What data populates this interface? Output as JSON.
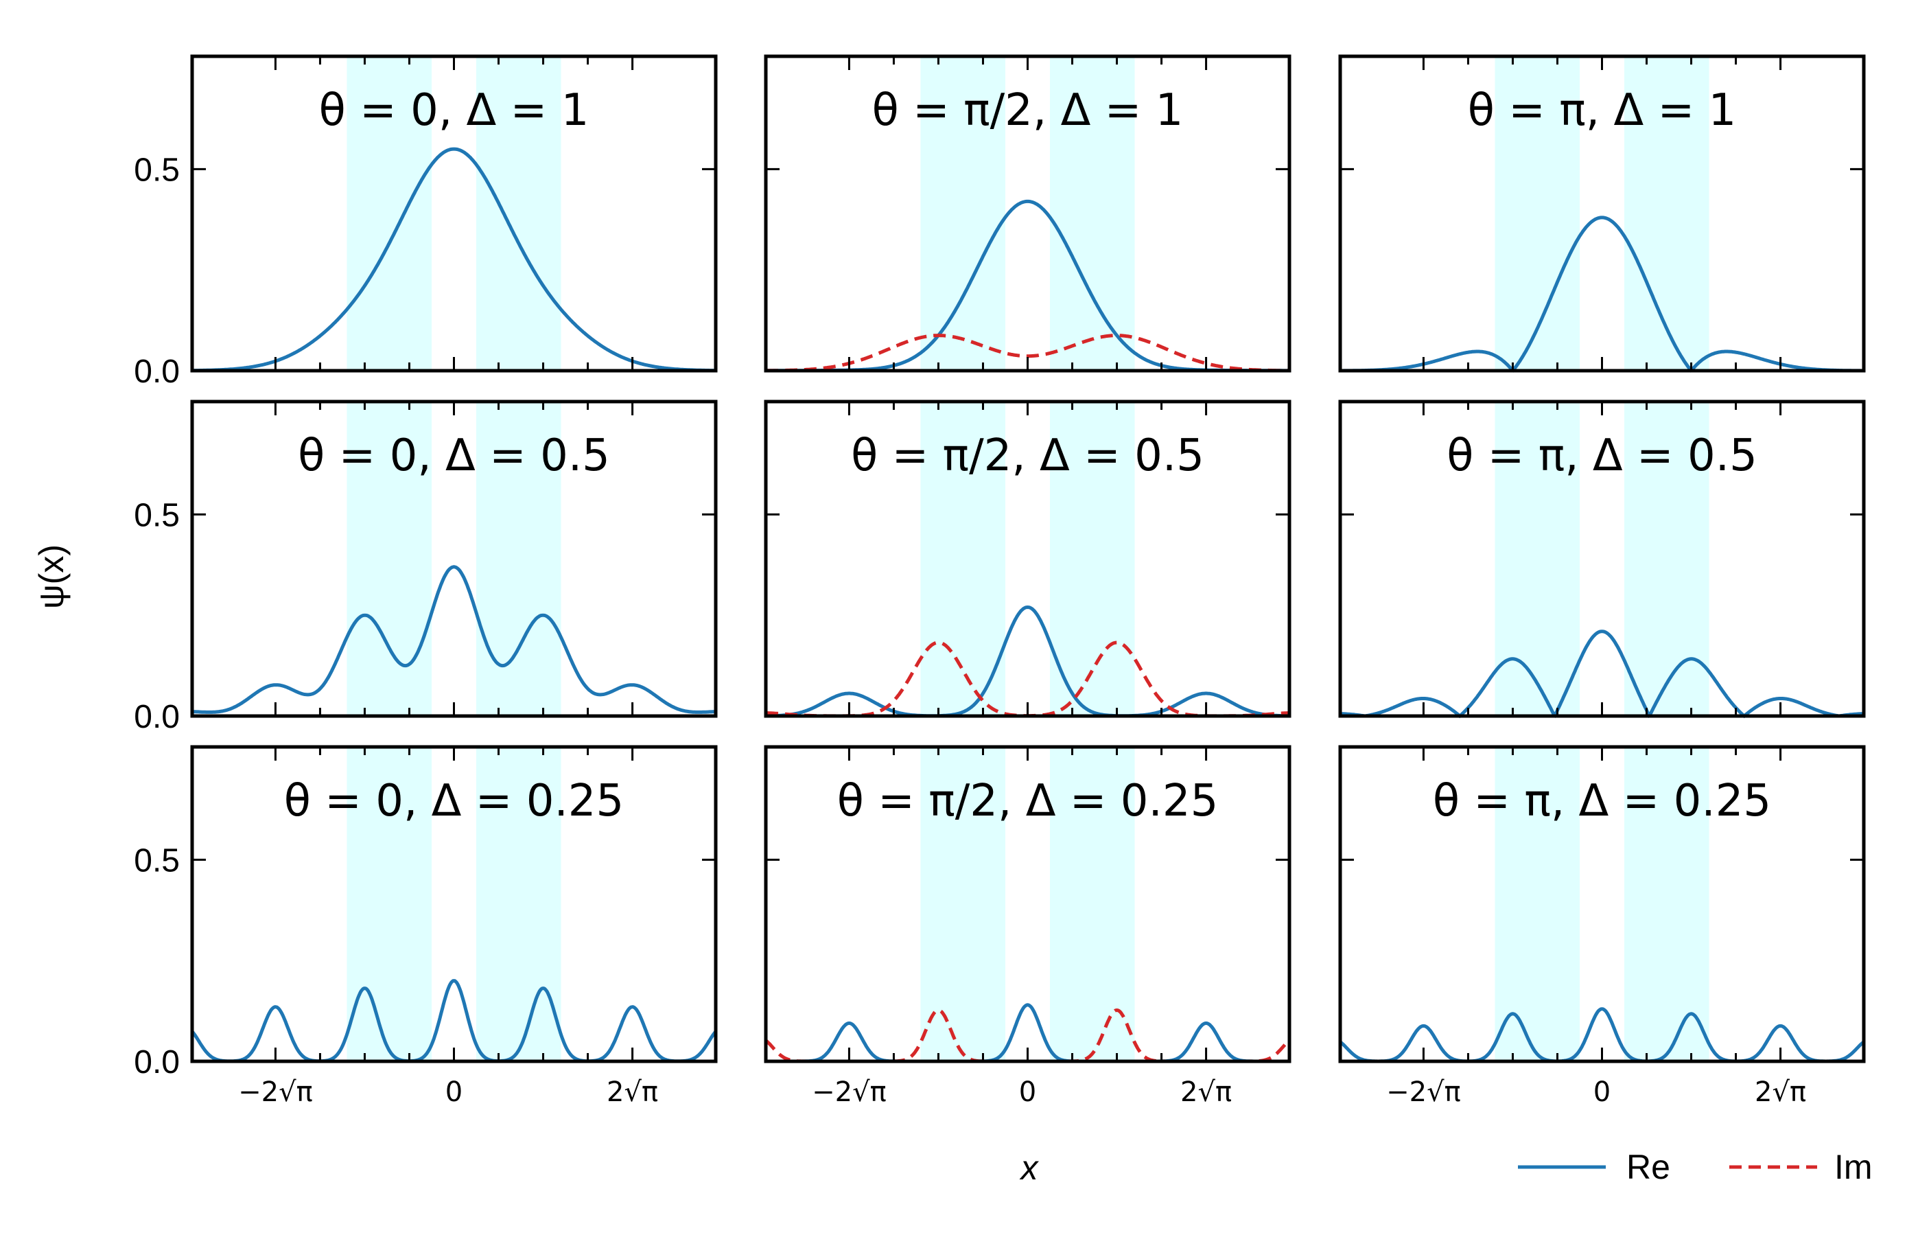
{
  "figure": {
    "xlabel": "x",
    "ylabel": "ψ(x)",
    "legend": {
      "placement": "bottom-right",
      "entries": [
        {
          "label": "Re",
          "color": "#1f77b4",
          "style": "solid"
        },
        {
          "label": "Im",
          "color": "#d62728",
          "style": "dashed"
        }
      ]
    }
  },
  "colors": {
    "re": "#1f77b4",
    "im": "#d62728",
    "shade": "#e0ffff"
  },
  "chart_data": [
    {
      "type": "line",
      "title": "θ = 0, Δ = 1",
      "theta": 0,
      "delta": 1,
      "xlim": [
        -5.2,
        5.2
      ],
      "ylim": [
        0,
        0.78
      ],
      "yticks": [
        "0.0",
        "0.5"
      ],
      "xticks": [
        "−2√π",
        "0",
        "2√π"
      ],
      "series": [
        {
          "name": "Re"
        }
      ]
    },
    {
      "type": "line",
      "title": "θ = π/2, Δ = 1",
      "theta": 1.5708,
      "delta": 1,
      "xlim": [
        -5.2,
        5.2
      ],
      "ylim": [
        0,
        0.78
      ],
      "yticks": [
        "0.0",
        "0.5"
      ],
      "xticks": [
        "−2√π",
        "0",
        "2√π"
      ],
      "series": [
        {
          "name": "Re"
        },
        {
          "name": "Im"
        }
      ]
    },
    {
      "type": "line",
      "title": "θ = π, Δ = 1",
      "theta": 3.1416,
      "delta": 1,
      "xlim": [
        -5.2,
        5.2
      ],
      "ylim": [
        0,
        0.78
      ],
      "yticks": [
        "0.0",
        "0.5"
      ],
      "xticks": [
        "−2√π",
        "0",
        "2√π"
      ],
      "series": [
        {
          "name": "Re"
        },
        {
          "name": "Im"
        }
      ]
    },
    {
      "type": "line",
      "title": "θ = 0, Δ = 0.5",
      "theta": 0,
      "delta": 0.5,
      "xlim": [
        -5.2,
        5.2
      ],
      "ylim": [
        0,
        0.78
      ],
      "yticks": [
        "0.0",
        "0.5"
      ],
      "xticks": [
        "−2√π",
        "0",
        "2√π"
      ],
      "series": [
        {
          "name": "Re"
        }
      ]
    },
    {
      "type": "line",
      "title": "θ = π/2, Δ = 0.5",
      "theta": 1.5708,
      "delta": 0.5,
      "xlim": [
        -5.2,
        5.2
      ],
      "ylim": [
        0,
        0.78
      ],
      "yticks": [
        "0.0",
        "0.5"
      ],
      "xticks": [
        "−2√π",
        "0",
        "2√π"
      ],
      "series": [
        {
          "name": "Re"
        },
        {
          "name": "Im"
        }
      ]
    },
    {
      "type": "line",
      "title": "θ = π, Δ = 0.5",
      "theta": 3.1416,
      "delta": 0.5,
      "xlim": [
        -5.2,
        5.2
      ],
      "ylim": [
        0,
        0.78
      ],
      "yticks": [
        "0.0",
        "0.5"
      ],
      "xticks": [
        "−2√π",
        "0",
        "2√π"
      ],
      "series": [
        {
          "name": "Re"
        },
        {
          "name": "Im"
        }
      ]
    },
    {
      "type": "line",
      "title": "θ = 0, Δ = 0.25",
      "theta": 0,
      "delta": 0.25,
      "xlim": [
        -5.2,
        5.2
      ],
      "ylim": [
        0,
        0.78
      ],
      "yticks": [
        "0.0",
        "0.5"
      ],
      "xticks": [
        "−2√π",
        "0",
        "2√π"
      ],
      "series": [
        {
          "name": "Re"
        }
      ]
    },
    {
      "type": "line",
      "title": "θ = π/2, Δ = 0.25",
      "theta": 1.5708,
      "delta": 0.25,
      "xlim": [
        -5.2,
        5.2
      ],
      "ylim": [
        0,
        0.78
      ],
      "yticks": [
        "0.0",
        "0.5"
      ],
      "xticks": [
        "−2√π",
        "0",
        "2√π"
      ],
      "series": [
        {
          "name": "Re"
        },
        {
          "name": "Im"
        }
      ]
    },
    {
      "type": "line",
      "title": "θ = π, Δ = 0.25",
      "theta": 3.1416,
      "delta": 0.25,
      "xlim": [
        -5.2,
        5.2
      ],
      "ylim": [
        0,
        0.78
      ],
      "yticks": [
        "0.0",
        "0.5"
      ],
      "xticks": [
        "−2√π",
        "0",
        "2√π"
      ],
      "series": [
        {
          "name": "Re"
        },
        {
          "name": "Im"
        }
      ]
    }
  ]
}
